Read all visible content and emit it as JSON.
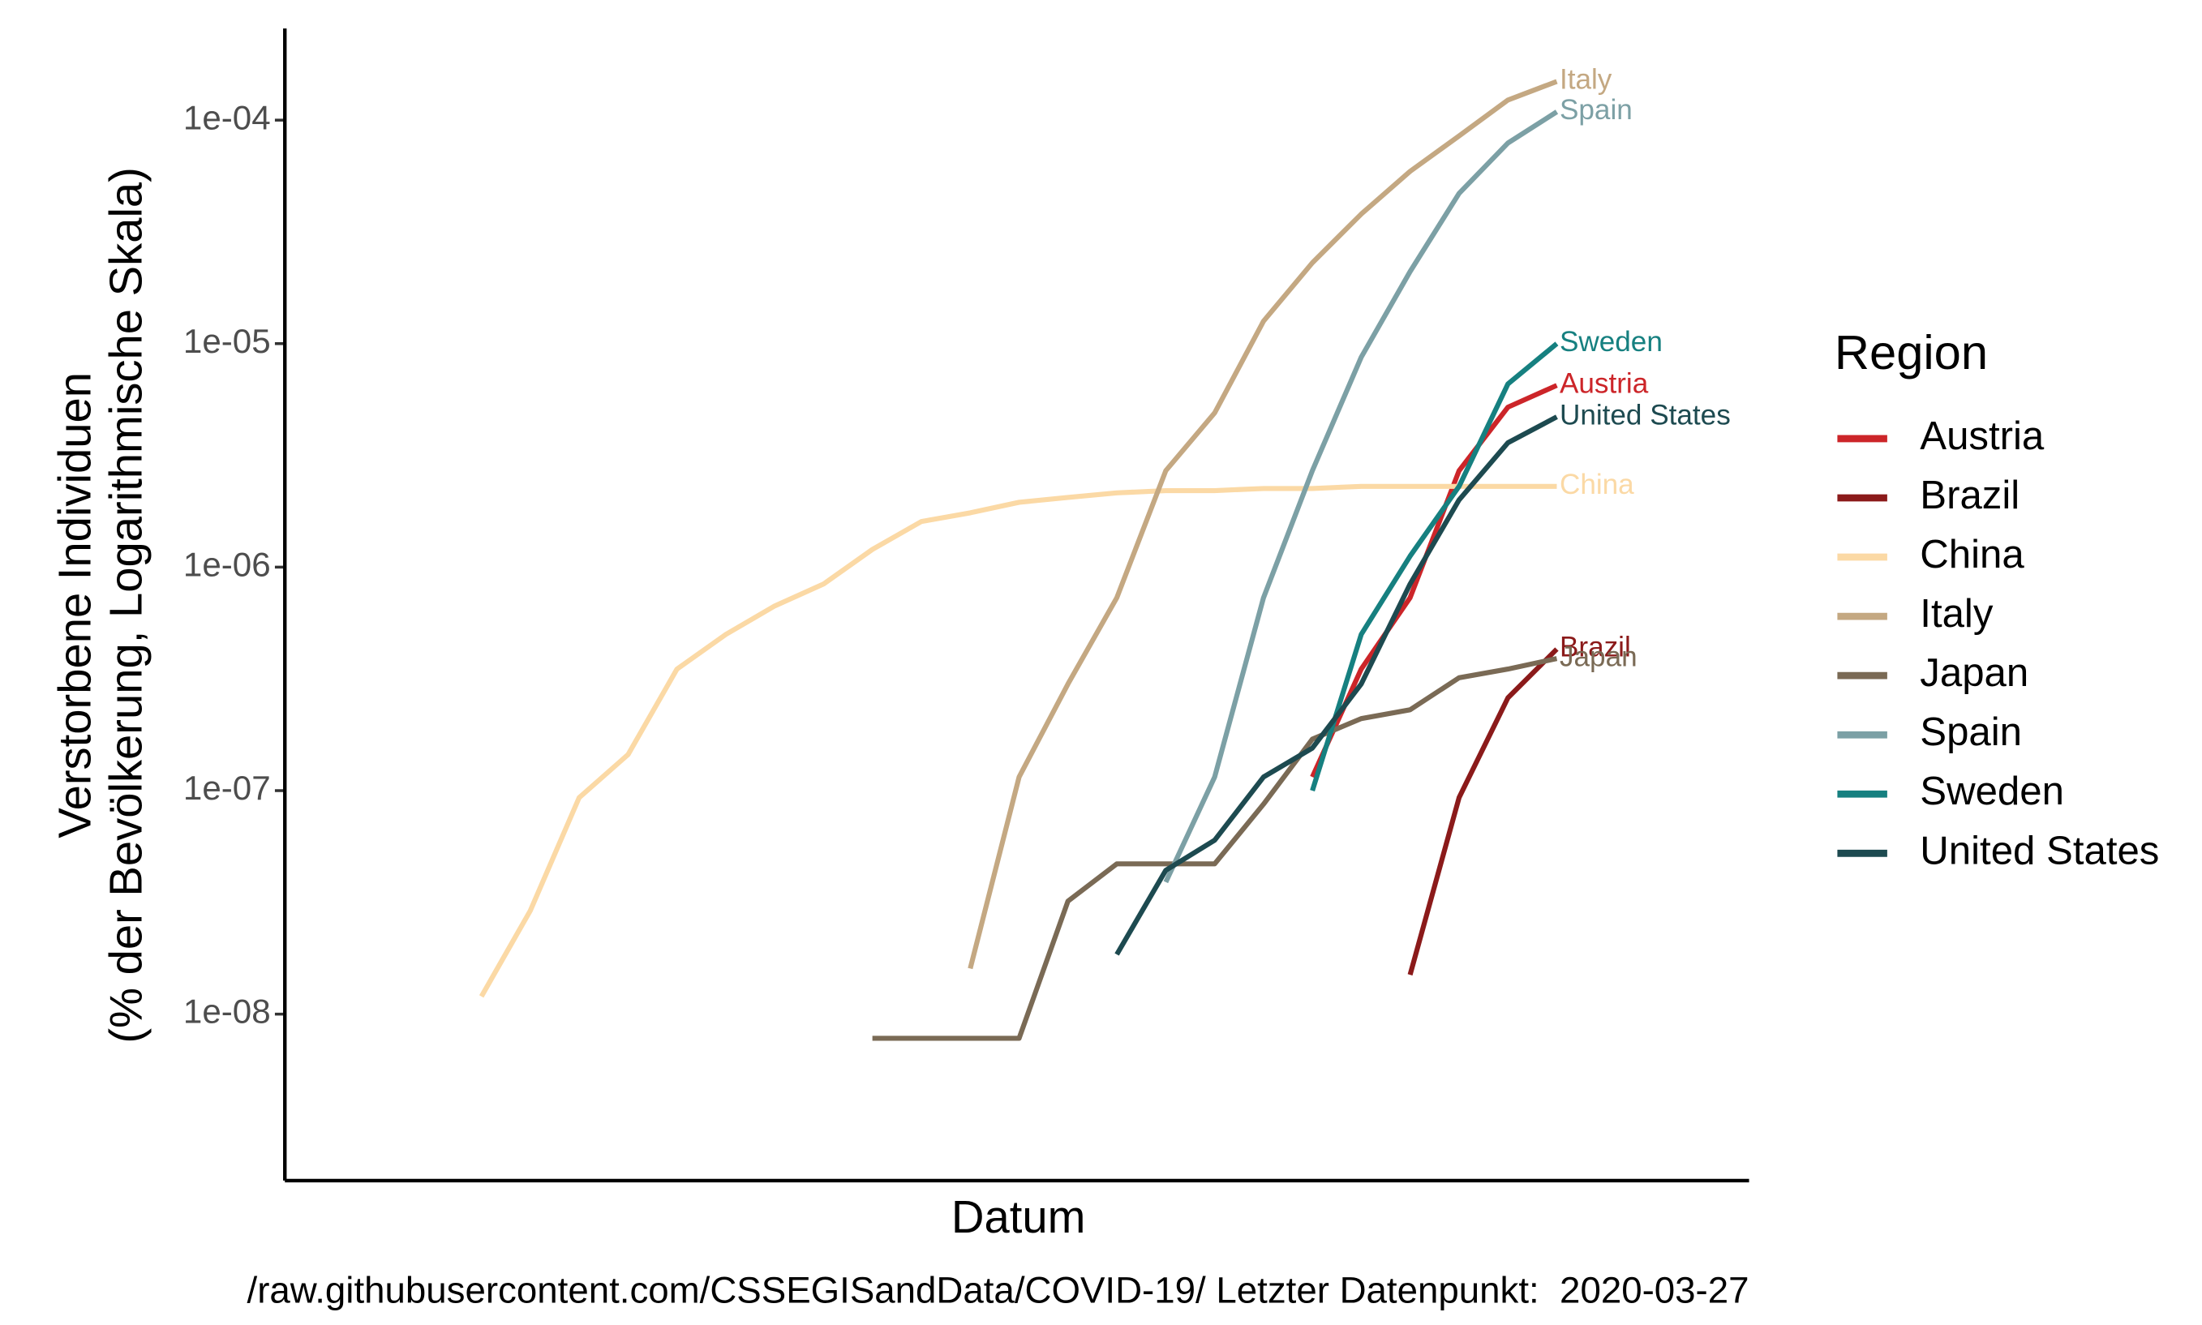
{
  "chart_data": {
    "type": "line",
    "log_y": true,
    "legend": "right",
    "legend_title": "Region",
    "x_label": "Datum",
    "y_label": [
      "Verstorbene Individuen",
      "(% der Bevölkerung, Logarithmische Skala)"
    ],
    "caption": "/raw.githubusercontent.com/CSSEGISandData/COVID-19/ Letzter Datenpunkt:  2020-03-27",
    "categories": [
      null,
      null,
      null,
      null,
      null,
      null,
      null,
      null,
      null,
      null,
      null,
      null,
      null,
      null,
      null,
      null,
      null,
      null,
      null,
      null,
      null,
      null,
      null
    ],
    "ylim": [
      1.8e-09,
      0.000257
    ],
    "yticks": [
      {
        "value": 1e-08,
        "label": "1e-08"
      },
      {
        "value": 1e-07,
        "label": "1e-07"
      },
      {
        "value": 1e-06,
        "label": "1e-06"
      },
      {
        "value": 1e-05,
        "label": "1e-05"
      },
      {
        "value": 0.0001,
        "label": "1e-04"
      }
    ],
    "series": [
      {
        "name": "Austria",
        "color": "#cc2529",
        "values": [
          null,
          null,
          null,
          null,
          null,
          null,
          null,
          null,
          null,
          null,
          null,
          null,
          null,
          null,
          null,
          null,
          null,
          1.15e-07,
          3.5e-07,
          7.3e-07,
          2.7e-06,
          5.2e-06,
          6.5e-06
        ]
      },
      {
        "name": "Brazil",
        "color": "#8b1a1a",
        "values": [
          null,
          null,
          null,
          null,
          null,
          null,
          null,
          null,
          null,
          null,
          null,
          null,
          null,
          null,
          null,
          null,
          null,
          null,
          null,
          1.5e-08,
          9.3e-08,
          2.6e-07,
          4.3e-07
        ]
      },
      {
        "name": "China",
        "color": "#fbd9a5",
        "values": [
          1.2e-08,
          2.9e-08,
          9.3e-08,
          1.45e-07,
          3.5e-07,
          5e-07,
          6.7e-07,
          8.4e-07,
          1.2e-06,
          1.6e-06,
          1.75e-06,
          1.95e-06,
          2.05e-06,
          2.15e-06,
          2.2e-06,
          2.2e-06,
          2.25e-06,
          2.25e-06,
          2.3e-06,
          2.3e-06,
          2.3e-06,
          2.3e-06,
          2.3e-06
        ]
      },
      {
        "name": "Italy",
        "color": "#c4a882",
        "values": [
          null,
          null,
          null,
          null,
          null,
          null,
          null,
          null,
          null,
          null,
          1.6e-08,
          1.15e-07,
          3e-07,
          7.3e-07,
          2.7e-06,
          4.9e-06,
          1.26e-05,
          2.3e-05,
          3.8e-05,
          5.9e-05,
          8.5e-05,
          0.000123,
          0.000149
        ]
      },
      {
        "name": "Japan",
        "color": "#7a6a55",
        "values": [
          null,
          null,
          null,
          null,
          null,
          null,
          null,
          null,
          7.8e-09,
          7.8e-09,
          7.8e-09,
          7.8e-09,
          3.2e-08,
          4.7e-08,
          4.7e-08,
          4.7e-08,
          8.7e-08,
          1.7e-07,
          2.1e-07,
          2.3e-07,
          3.2e-07,
          3.5e-07,
          3.9e-07
        ]
      },
      {
        "name": "Spain",
        "color": "#7ca0a5",
        "values": [
          null,
          null,
          null,
          null,
          null,
          null,
          null,
          null,
          null,
          null,
          null,
          null,
          null,
          null,
          3.9e-08,
          1.15e-07,
          7.3e-07,
          2.7e-06,
          8.7e-06,
          2.1e-05,
          4.7e-05,
          7.9e-05,
          0.000109
        ]
      },
      {
        "name": "Sweden",
        "color": "#168080",
        "values": [
          null,
          null,
          null,
          null,
          null,
          null,
          null,
          null,
          null,
          null,
          null,
          null,
          null,
          null,
          null,
          null,
          null,
          1e-07,
          5e-07,
          1.12e-06,
          2.3e-06,
          6.6e-06,
          1e-05
        ]
      },
      {
        "name": "United States",
        "color": "#1d4a50",
        "values": [
          null,
          null,
          null,
          null,
          null,
          null,
          null,
          null,
          null,
          null,
          null,
          null,
          null,
          1.85e-08,
          4.4e-08,
          6e-08,
          1.15e-07,
          1.55e-07,
          3e-07,
          8.4e-07,
          2e-06,
          3.6e-06,
          4.7e-06
        ]
      }
    ]
  }
}
